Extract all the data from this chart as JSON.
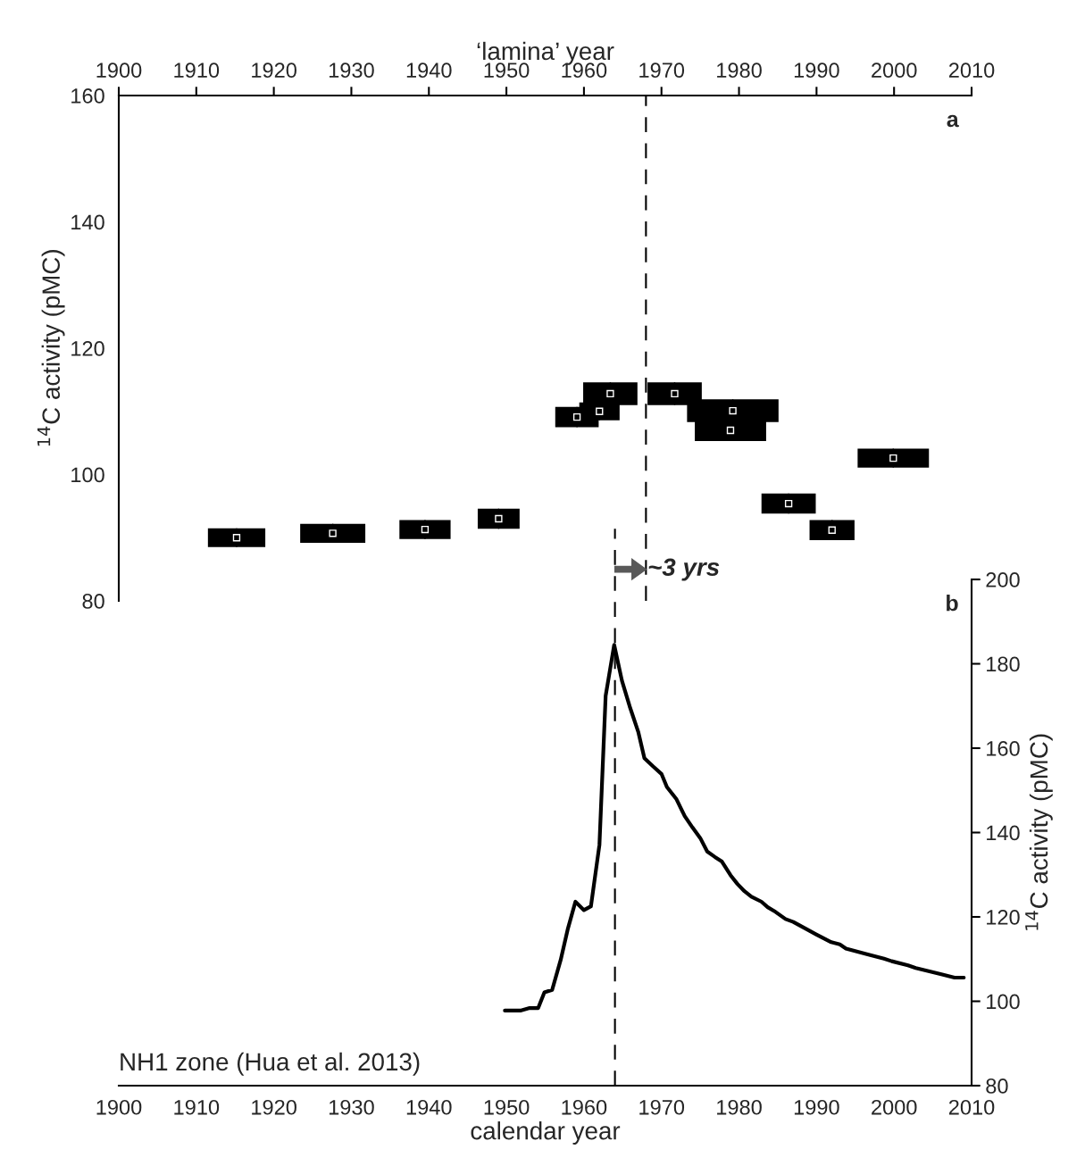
{
  "chart_data": [
    {
      "type": "scatter",
      "xlabel": "‘lamina’ year",
      "ylabel": "$^{14}$C activity (pMC)",
      "xlim": [
        1900,
        2010
      ],
      "xticks": [
        1900,
        1910,
        1920,
        1930,
        1940,
        1950,
        1960,
        1970,
        1980,
        1990,
        2000,
        2010
      ],
      "ylim": [
        80,
        160
      ],
      "yticks": [
        80,
        100,
        120,
        140,
        160
      ],
      "grid": false,
      "series": [
        {
          "color": "#000000",
          "x": [
            1915.2,
            1927.6,
            1939.5,
            1949.0,
            1959.1,
            1962.0,
            1963.4,
            1971.7,
            1979.2,
            1978.9,
            1986.4,
            1992.0,
            1999.9
          ],
          "values": [
            90.0,
            90.7,
            91.3,
            93.0,
            109.1,
            110.0,
            112.8,
            112.8,
            110.1,
            107.0,
            95.4,
            91.2,
            102.6
          ],
          "xerrors": [
            3.7,
            4.2,
            3.3,
            2.7,
            2.8,
            2.6,
            3.5,
            3.5,
            5.9,
            4.6,
            3.5,
            2.9,
            4.6
          ],
          "errors": [
            1.5,
            1.5,
            1.5,
            1.6,
            1.6,
            1.4,
            1.8,
            1.8,
            1.8,
            1.7,
            1.6,
            1.6,
            1.5
          ]
        }
      ],
      "ref_lines": [
        {
          "axis": "x",
          "value": 1968,
          "line_style": "dashed",
          "color": "#000000"
        }
      ],
      "annotations": [
        "a",
        {
          "text": "~3 yrs",
          "x": 1968,
          "y": 85
        }
      ]
    },
    {
      "type": "line",
      "xlabel": "calendar year",
      "ylabel": "$^{14}$C activity (pMC)",
      "xlim": [
        1900,
        2010
      ],
      "xticks": [
        1900,
        1910,
        1920,
        1930,
        1940,
        1950,
        1960,
        1970,
        1980,
        1990,
        2000,
        2010
      ],
      "ylim": [
        80,
        200
      ],
      "yticks": [
        80,
        100,
        120,
        140,
        160,
        180,
        200
      ],
      "grid": false,
      "marker": "none",
      "line_style": "solid",
      "series": [
        {
          "color": "#000000",
          "x": [
            1949.8,
            1951.8,
            1953.0,
            1954.1,
            1954.9,
            1955.9,
            1957.0,
            1957.9,
            1958.9,
            1960.0,
            1960.9,
            1962.0,
            1962.8,
            1963.9,
            1964.9,
            1965.9,
            1967.0,
            1967.8,
            1968.9,
            1970.0,
            1970.7,
            1971.9,
            1973.0,
            1974.0,
            1975.0,
            1975.9,
            1976.9,
            1977.8,
            1978.9,
            1979.8,
            1980.7,
            1981.6,
            1982.9,
            1983.7,
            1984.7,
            1986.0,
            1987.0,
            1988.8,
            1989.9,
            1991.9,
            1993.0,
            1993.8,
            1996.6,
            1998.7,
            1999.7,
            2001.8,
            2002.8,
            2006.1,
            2007.8,
            2009.0
          ],
          "values": [
            97.8,
            97.8,
            98.4,
            98.4,
            102.1,
            102.7,
            109.8,
            117.0,
            123.6,
            121.6,
            122.5,
            137.1,
            172.4,
            184.5,
            176.0,
            169.9,
            163.9,
            157.6,
            155.7,
            153.9,
            150.8,
            148.0,
            143.9,
            141.2,
            138.7,
            135.5,
            134.2,
            133.1,
            129.9,
            127.8,
            126.1,
            124.8,
            123.6,
            122.3,
            121.2,
            119.5,
            118.8,
            117.0,
            115.9,
            114.0,
            113.5,
            112.5,
            111.1,
            110.1,
            109.5,
            108.5,
            107.9,
            106.4,
            105.6,
            105.6
          ]
        }
      ],
      "ref_lines": [
        {
          "axis": "x",
          "value": 1964,
          "line_style": "dashed",
          "color": "#000000"
        }
      ],
      "annotations": [
        "b",
        "NH1 zone (Hua et al. 2013)"
      ]
    }
  ]
}
